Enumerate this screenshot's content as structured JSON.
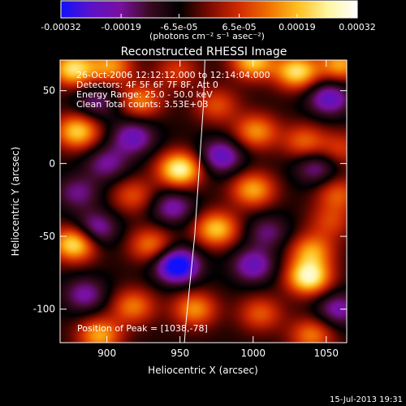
{
  "chart_data": {
    "type": "heatmap",
    "title": "Reconstructed RHESSI Image",
    "xlabel": "Heliocentric X (arcsec)",
    "ylabel": "Heliocentric Y (arcsec)",
    "xlim": [
      868,
      1064
    ],
    "ylim": [
      -123,
      71
    ],
    "xticks": [
      900,
      950,
      1000,
      1050
    ],
    "xtick_labels": [
      "900",
      "950",
      "1000",
      "1050"
    ],
    "yticks": [
      50,
      0,
      -50,
      -100
    ],
    "ytick_labels": [
      "50",
      "0",
      "-50",
      "-100"
    ],
    "colorbar": {
      "range": [
        -0.00032,
        0.00032
      ],
      "ticks": [
        -0.00032,
        -0.00019,
        -6.5e-05,
        6.5e-05,
        0.00019,
        0.00032
      ],
      "tick_labels": [
        "-0.00032",
        "-0.00019",
        "-6.5e-05",
        "6.5e-05",
        "0.00019",
        "0.00032"
      ],
      "label": "(photons cm⁻² s⁻¹ asec⁻²)",
      "colors": [
        "#1010ff",
        "#5a12c8",
        "#7a10a0",
        "#3a0a20",
        "#000000",
        "#7a0a00",
        "#d02a00",
        "#f07000",
        "#ffc020",
        "#fff6a0",
        "#ffffff"
      ]
    },
    "annotations": [
      "26-Oct-2006 12:12:12.000 to 12:14:04.000",
      "Detectors: 4F 5F 6F 7F 8F, Att 0",
      "Energy Range: 25.0 - 50.0 keV",
      "Clean     Total counts: 3.53E+03"
    ],
    "peak_label": "Position of Peak = [1038,-78]",
    "peak": [
      1038,
      -78
    ],
    "blobs": [
      {
        "x": 877,
        "y": 65,
        "v": 0.00028
      },
      {
        "x": 903,
        "y": 67,
        "v": 0.0002
      },
      {
        "x": 948,
        "y": 64,
        "v": 0.00012
      },
      {
        "x": 1000,
        "y": 70,
        "v": 0.00025
      },
      {
        "x": 1030,
        "y": 63,
        "v": 0.00028
      },
      {
        "x": 1060,
        "y": 68,
        "v": 0.00022
      },
      {
        "x": 893,
        "y": 42,
        "v": -0.00013
      },
      {
        "x": 923,
        "y": 43,
        "v": 0.00018
      },
      {
        "x": 975,
        "y": 40,
        "v": 0.00014
      },
      {
        "x": 1052,
        "y": 45,
        "v": -0.0002
      },
      {
        "x": 880,
        "y": 22,
        "v": 0.00026
      },
      {
        "x": 918,
        "y": 18,
        "v": -0.00018
      },
      {
        "x": 1002,
        "y": 22,
        "v": 0.0002
      },
      {
        "x": 1035,
        "y": 15,
        "v": 0.00016
      },
      {
        "x": 1060,
        "y": 10,
        "v": 0.00012
      },
      {
        "x": 900,
        "y": 0,
        "v": -0.00014
      },
      {
        "x": 950,
        "y": -4,
        "v": 0.00032
      },
      {
        "x": 978,
        "y": 5,
        "v": -0.0002
      },
      {
        "x": 1043,
        "y": -3,
        "v": -0.00014
      },
      {
        "x": 880,
        "y": -20,
        "v": -0.00013
      },
      {
        "x": 918,
        "y": -22,
        "v": 0.00014
      },
      {
        "x": 1000,
        "y": -18,
        "v": 0.00022
      },
      {
        "x": 1058,
        "y": -21,
        "v": 0.00015
      },
      {
        "x": 945,
        "y": -30,
        "v": -0.00016
      },
      {
        "x": 892,
        "y": -45,
        "v": -0.00018
      },
      {
        "x": 975,
        "y": -45,
        "v": 0.00025
      },
      {
        "x": 1010,
        "y": -47,
        "v": -0.00012
      },
      {
        "x": 1053,
        "y": -40,
        "v": 0.00012
      },
      {
        "x": 878,
        "y": -55,
        "v": 0.0003
      },
      {
        "x": 930,
        "y": -56,
        "v": 0.00018
      },
      {
        "x": 1040,
        "y": -60,
        "v": 0.0002
      },
      {
        "x": 948,
        "y": -70,
        "v": -0.00032
      },
      {
        "x": 1000,
        "y": -70,
        "v": -0.00018
      },
      {
        "x": 1038,
        "y": -78,
        "v": 0.00032
      },
      {
        "x": 885,
        "y": -90,
        "v": -0.00015
      },
      {
        "x": 918,
        "y": -98,
        "v": 0.00018
      },
      {
        "x": 960,
        "y": -100,
        "v": 0.0002
      },
      {
        "x": 1005,
        "y": -103,
        "v": 0.00015
      },
      {
        "x": 1058,
        "y": -100,
        "v": -0.00016
      },
      {
        "x": 895,
        "y": -118,
        "v": 0.00022
      },
      {
        "x": 1040,
        "y": -118,
        "v": 0.00018
      }
    ],
    "limb": [
      [
        967,
        71
      ],
      [
        966,
        40
      ],
      [
        964,
        10
      ],
      [
        962,
        -20
      ],
      [
        960,
        -50
      ],
      [
        957,
        -80
      ],
      [
        954,
        -110
      ],
      [
        953,
        -123
      ]
    ]
  },
  "footer_date": "15-Jul-2013 19:31"
}
